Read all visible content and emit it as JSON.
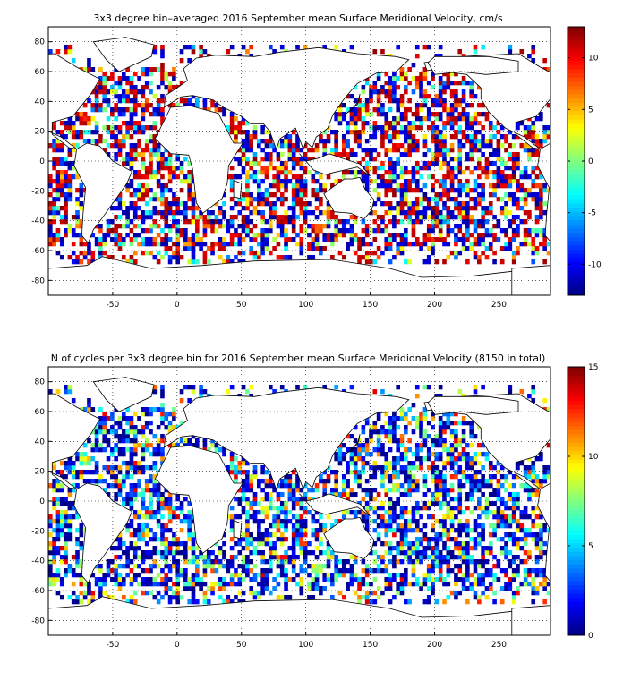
{
  "chart_data": [
    {
      "type": "heatmap",
      "title": "3x3 degree bin–averaged 2016 September mean Surface Meridional Velocity, cm/s",
      "xlim": [
        -100,
        290
      ],
      "ylim": [
        -90,
        90
      ],
      "xticks": [
        -50,
        0,
        50,
        100,
        150,
        200,
        250
      ],
      "yticks": [
        80,
        60,
        40,
        20,
        0,
        -20,
        -40,
        -60,
        -80
      ],
      "grid": true,
      "cell_size_deg": 3,
      "colormap": "jet",
      "colorbar": {
        "min": -13,
        "max": 13,
        "ticks": [
          10,
          5,
          0,
          -5,
          -10
        ],
        "placement": "right"
      }
    },
    {
      "type": "heatmap",
      "title": "N of cycles per 3x3 degree bin for 2016 September mean Surface Meridional Velocity (8150 in total)",
      "xlim": [
        -100,
        290
      ],
      "ylim": [
        -90,
        90
      ],
      "xticks": [
        -50,
        0,
        50,
        100,
        150,
        200,
        250
      ],
      "yticks": [
        80,
        60,
        40,
        20,
        0,
        -20,
        -40,
        -60,
        -80
      ],
      "grid": true,
      "cell_size_deg": 3,
      "colormap": "jet",
      "colorbar": {
        "min": 0,
        "max": 15,
        "ticks": [
          15,
          10,
          5,
          0
        ],
        "placement": "right"
      },
      "total_cycles": 8150
    }
  ],
  "panels": [
    {
      "title": "3x3 degree bin–averaged 2016 September mean Surface Meridional Velocity, cm/s"
    },
    {
      "title": "N of cycles per 3x3 degree bin for 2016 September mean Surface Meridional Velocity (8150 in total)"
    }
  ]
}
